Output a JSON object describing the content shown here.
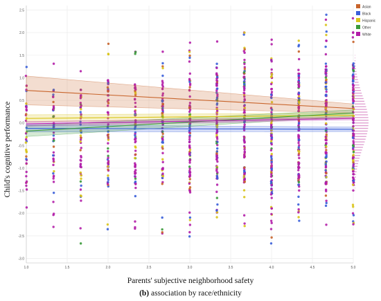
{
  "caption": {
    "panel": "(b)",
    "text": " association by race/ethnicity"
  },
  "chart_data": {
    "type": "scatter",
    "title": "",
    "xlabel": "Parents' subjective neighborhood safety",
    "ylabel": "Child's cognitive performance",
    "xlim": [
      1.0,
      5.0
    ],
    "ylim": [
      -3.1,
      2.6
    ],
    "x_ticks": [
      "1.0",
      "1.5",
      "2.0",
      "2.5",
      "3.0",
      "3.5",
      "4.0",
      "4.5",
      "5.0"
    ],
    "y_ticks": [
      "-3.0",
      "-2.5",
      "-2.0",
      "-1.5",
      "-1.0",
      "-0.5",
      "0.0",
      "0.5",
      "1.0",
      "1.5",
      "2.0",
      "2.5"
    ],
    "grid": true,
    "legend_position": "top-right",
    "x_levels": [
      1.0,
      1.333,
      1.667,
      2.0,
      2.333,
      2.667,
      3.0,
      3.333,
      3.667,
      4.0,
      4.333,
      4.667,
      5.0
    ],
    "y_range_by_level": [
      [
        -3.0,
        2.4
      ],
      [
        -2.4,
        1.4
      ],
      [
        -3.0,
        1.5
      ],
      [
        -2.5,
        1.8
      ],
      [
        -2.5,
        1.7
      ],
      [
        -2.6,
        1.6
      ],
      [
        -2.8,
        1.9
      ],
      [
        -2.5,
        2.0
      ],
      [
        -2.4,
        2.2
      ],
      [
        -2.8,
        2.1
      ],
      [
        -2.5,
        2.0
      ],
      [
        -2.5,
        2.4
      ],
      [
        -2.5,
        2.5
      ]
    ],
    "series": [
      {
        "name": "Asian",
        "color": "#c8642b",
        "fit": {
          "y_at_x1": 0.72,
          "y_at_x5": 0.32,
          "ci_at_x1": 0.32,
          "ci_at_x5": 0.1
        }
      },
      {
        "name": "Black",
        "color": "#3a5fd9",
        "fit": {
          "y_at_x1": -0.12,
          "y_at_x5": -0.14,
          "ci_at_x1": 0.08,
          "ci_at_x5": 0.05
        }
      },
      {
        "name": "Hispanic",
        "color": "#d9c41a",
        "fit": {
          "y_at_x1": 0.1,
          "y_at_x5": 0.17,
          "ci_at_x1": 0.08,
          "ci_at_x5": 0.05
        }
      },
      {
        "name": "Other",
        "color": "#3a9a3a",
        "fit": {
          "y_at_x1": -0.18,
          "y_at_x5": 0.22,
          "ci_at_x1": 0.12,
          "ci_at_x5": 0.07
        }
      },
      {
        "name": "White",
        "color": "#b21ea8",
        "fit": {
          "y_at_x1": -0.02,
          "y_at_x5": 0.1,
          "ci_at_x1": 0.05,
          "ci_at_x5": 0.03
        }
      }
    ]
  }
}
